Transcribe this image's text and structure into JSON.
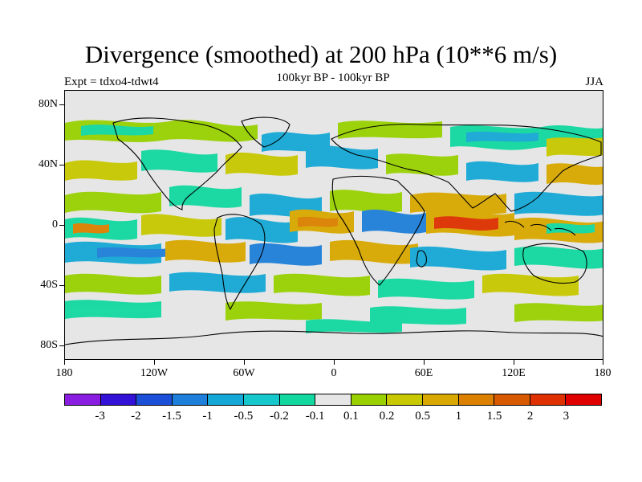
{
  "title": "Divergence (smoothed) at 200 hPa (10**6 m/s)",
  "subtitle": "100kyr BP - 100kyr BP",
  "experiment": "Expt = tdxo4-tdwt4",
  "season": "JJA",
  "lat_labels": [
    "80N",
    "40N",
    "0",
    "40S",
    "80S"
  ],
  "lon_labels": [
    "180",
    "120W",
    "60W",
    "0",
    "60E",
    "120E",
    "180"
  ],
  "colorbar": {
    "colors": [
      "#8a1ee0",
      "#3311d6",
      "#1c4fd8",
      "#1d7fd9",
      "#15a8d6",
      "#16c8cc",
      "#12d8a0",
      "#e6e6e6",
      "#99d100",
      "#c8c800",
      "#d8a800",
      "#db8000",
      "#d85a00",
      "#de3000",
      "#e00000"
    ],
    "labels": [
      "-3",
      "-2",
      "-1.5",
      "-1",
      "-0.5",
      "-0.2",
      "-0.1",
      "0.1",
      "0.2",
      "0.5",
      "1",
      "1.5",
      "2",
      "3"
    ]
  }
}
